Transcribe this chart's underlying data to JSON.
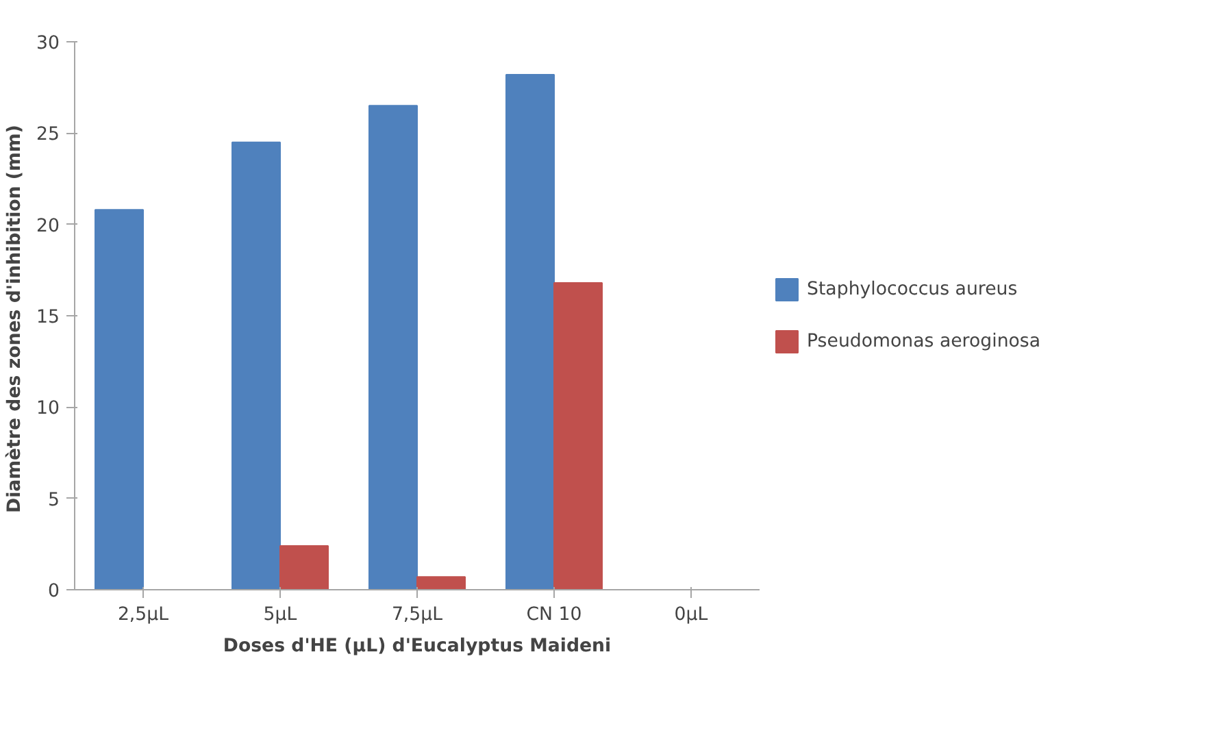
{
  "chart_data": {
    "type": "bar",
    "xlabel": "Doses d'HE (µL) d'Eucalyptus Maideni",
    "ylabel": "Diamètre des zones d'inhibition  (mm)",
    "categories": [
      "2,5µL",
      "5µL",
      "7,5µL",
      "CN 10",
      "0µL"
    ],
    "series": [
      {
        "name": "Staphylococcus aureus",
        "color": "#4f81bd",
        "values": [
          20.8,
          24.5,
          26.5,
          28.2,
          0
        ]
      },
      {
        "name": "Pseudomonas aeroginosa",
        "color": "#c0504d",
        "values": [
          0,
          2.4,
          0.7,
          16.8,
          0
        ]
      }
    ],
    "ylim": [
      0,
      30
    ],
    "yticks": [
      0,
      5,
      10,
      15,
      20,
      25,
      30
    ],
    "grid": false,
    "legend": "right"
  }
}
